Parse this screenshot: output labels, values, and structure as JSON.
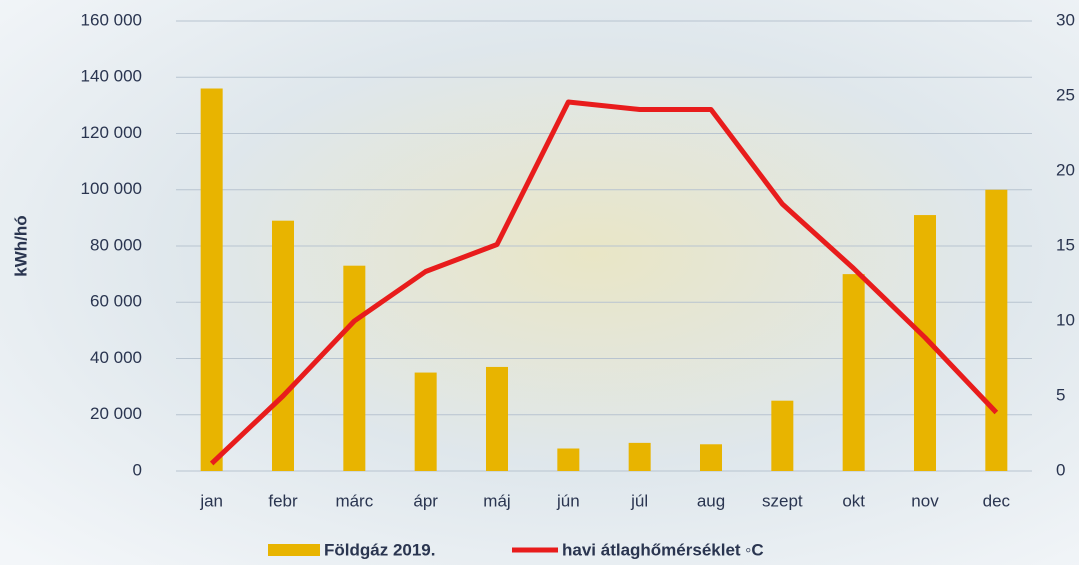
{
  "chart_data": {
    "type": "bar_line",
    "y_label": "kWh/hó",
    "categories": [
      "jan",
      "febr",
      "márc",
      "ápr",
      "máj",
      "jún",
      "júl",
      "aug",
      "szept",
      "okt",
      "nov",
      "dec"
    ],
    "series": [
      {
        "name": "Földgáz 2019.",
        "type": "bar",
        "color": "#e8b400",
        "values": [
          136000,
          89000,
          73000,
          35000,
          37000,
          8000,
          10000,
          9500,
          25000,
          70000,
          91000,
          100000
        ]
      },
      {
        "name": "havi átlaghőmérséklet ◦C",
        "type": "line",
        "axis": "y2",
        "color": "#e81c1c",
        "values": [
          0.5,
          5,
          10,
          13.3,
          15.1,
          24.6,
          24.1,
          24.1,
          17.8,
          13.5,
          8.9,
          3.9
        ]
      }
    ],
    "ylim": [
      0,
      160000
    ],
    "yticks": [
      0,
      {
        "value": 20000,
        "label": "20 000"
      },
      {
        "value": 40000,
        "label": "40 000"
      },
      {
        "value": 60000,
        "label": "60 000"
      },
      {
        "value": 80000,
        "label": "80 000"
      },
      {
        "value": 100000,
        "label": "100 000"
      },
      {
        "value": 120000,
        "label": "120 000"
      },
      {
        "value": 140000,
        "label": "140 000"
      },
      {
        "value": 160000,
        "label": "160 000"
      }
    ],
    "y2lim": [
      0,
      30
    ],
    "y2ticks": [
      0,
      5,
      10,
      15,
      20,
      25,
      30
    ],
    "grid": true
  }
}
